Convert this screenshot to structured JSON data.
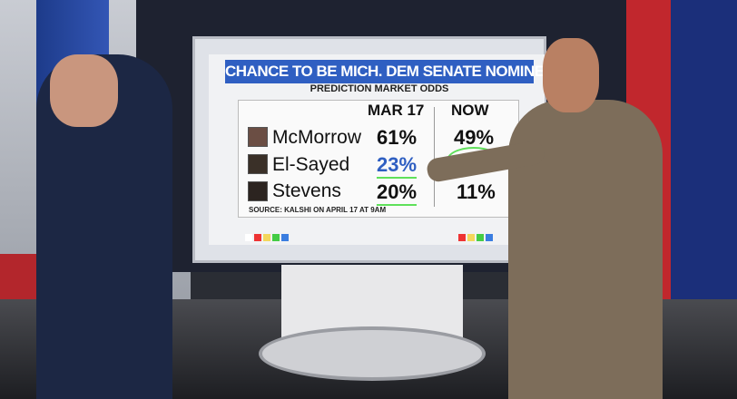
{
  "graphic": {
    "title": "CHANCE TO BE MICH. DEM SENATE NOMINEE",
    "subtitle": "PREDICTION MARKET ODDS",
    "columns": [
      "MAR 17",
      "NOW"
    ],
    "rows": [
      {
        "name": "McMorrow",
        "mar17": "61%",
        "now": "49%"
      },
      {
        "name": "El-Sayed",
        "mar17": "23%",
        "now": ""
      },
      {
        "name": "Stevens",
        "mar17": "20%",
        "now": "11%"
      }
    ],
    "source": "SOURCE: KALSHI ON APRIL 17 AT 9AM",
    "colors": {
      "title_bar": "#2f5fc2",
      "highlight_value": "#2f5fc2",
      "annotation": "#5fe05a"
    }
  }
}
